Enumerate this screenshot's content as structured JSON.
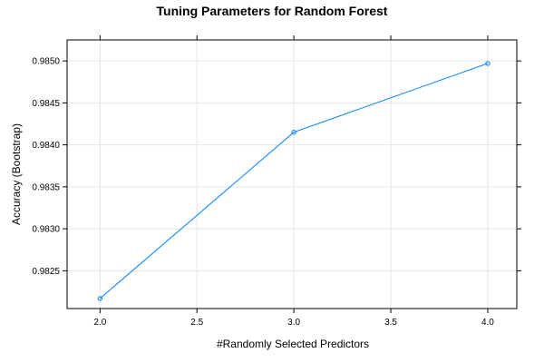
{
  "chart_data": {
    "type": "line",
    "title": "Tuning Parameters for Random Forest",
    "xlabel": "#Randomly Selected Predictors",
    "ylabel": "Accuracy (Bootstrap)",
    "xlim": [
      1.83,
      4.15
    ],
    "ylim": [
      0.98205,
      0.98525
    ],
    "x_ticks": [
      "2.0",
      "2.5",
      "3.0",
      "3.5",
      "4.0"
    ],
    "y_ticks": [
      "0.9825",
      "0.9830",
      "0.9835",
      "0.9840",
      "0.9845",
      "0.9850"
    ],
    "grid": true,
    "line_color": "#0080ff",
    "series": [
      {
        "x": [
          2.0,
          3.0,
          4.0
        ],
        "values": [
          0.98217,
          0.98415,
          0.98497
        ]
      }
    ]
  }
}
